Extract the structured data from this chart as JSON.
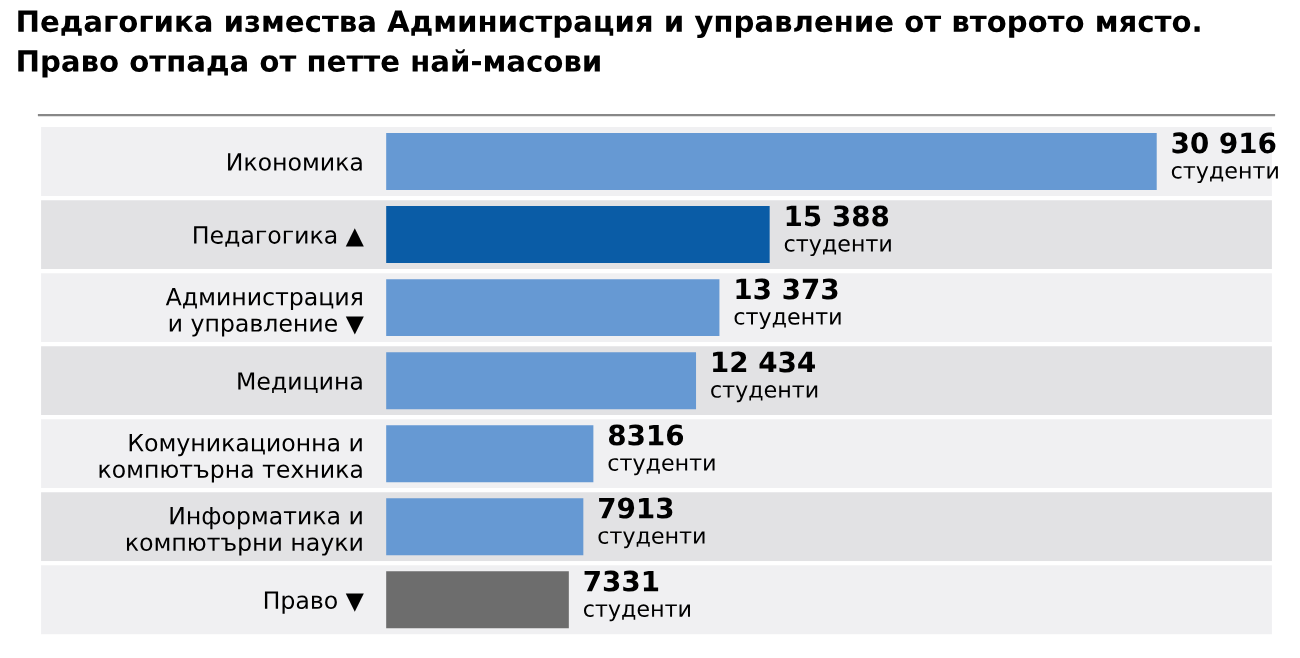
{
  "chart_data": {
    "type": "bar",
    "orientation": "horizontal",
    "title": "Педагогика измества Администрация и управление от второто място.\nПраво отпада от петте най-масови",
    "categories": [
      "Икономика",
      "Педагогика ▲",
      "Администрация\nи управление ▼",
      "Медицина",
      "Комуникационна и\nкомпютърна техника",
      "Информатика и\nкомпютърни науки",
      "Право ▼"
    ],
    "values": [
      30916,
      15388,
      13373,
      12434,
      8316,
      7913,
      7331
    ],
    "colors": [
      "#6699d3",
      "#0a5ca6",
      "#6699d3",
      "#6699d3",
      "#6699d3",
      "#6699d3",
      "#6d6d6d"
    ],
    "value_labels": [
      "30 916\nстуденти",
      "15 388\nстуденти",
      "13 373\nстуденти",
      "12 434\nстуденти",
      "8316\nстуденти",
      "7913\nстуденти",
      "7331\nстуденти"
    ],
    "grid": false,
    "legend": false
  }
}
